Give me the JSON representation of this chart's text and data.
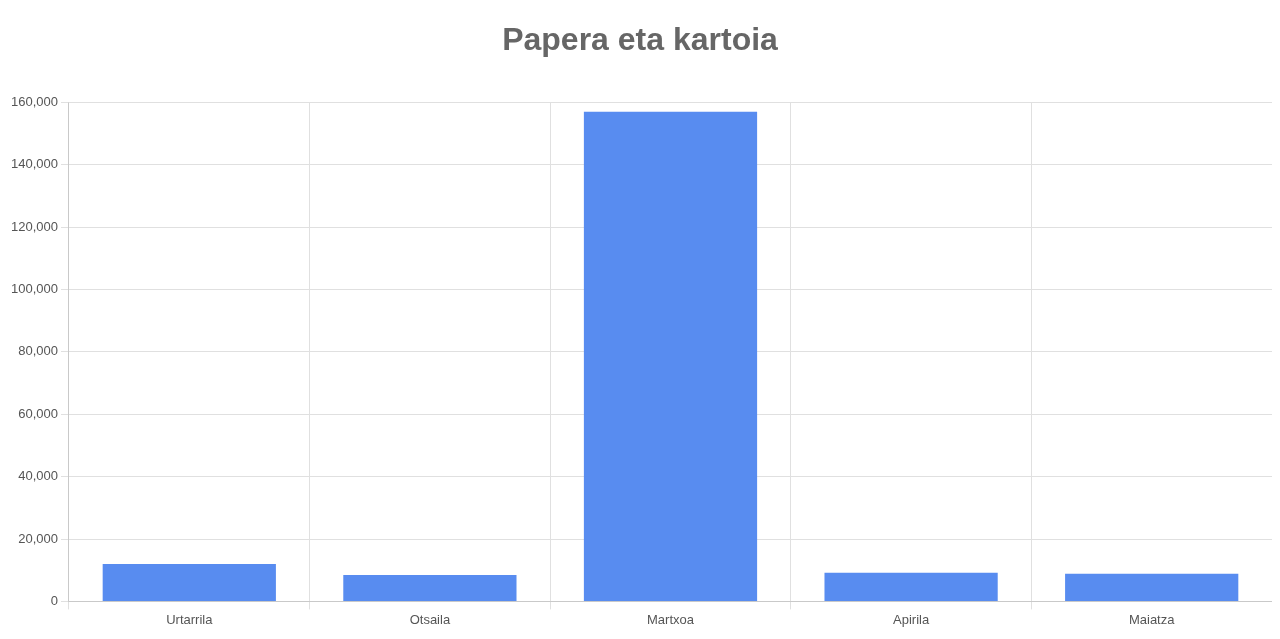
{
  "chart_data": {
    "type": "bar",
    "title": "Papera eta kartoia",
    "categories": [
      "Urtarrila",
      "Otsaila",
      "Martxoa",
      "Apirila",
      "Maiatza"
    ],
    "values": [
      12000,
      8500,
      157000,
      9200,
      8900
    ],
    "color": "#588cf0",
    "ylim": [
      0,
      160000
    ],
    "yticks": [
      {
        "value": 0,
        "label": "0"
      },
      {
        "value": 20000,
        "label": "20,000"
      },
      {
        "value": 40000,
        "label": "40,000"
      },
      {
        "value": 60000,
        "label": "60,000"
      },
      {
        "value": 80000,
        "label": "80,000"
      },
      {
        "value": 100000,
        "label": "100,000"
      },
      {
        "value": 120000,
        "label": "120,000"
      },
      {
        "value": 140000,
        "label": "140,000"
      },
      {
        "value": 160000,
        "label": "160,000"
      }
    ],
    "grid": true,
    "legend": false
  }
}
